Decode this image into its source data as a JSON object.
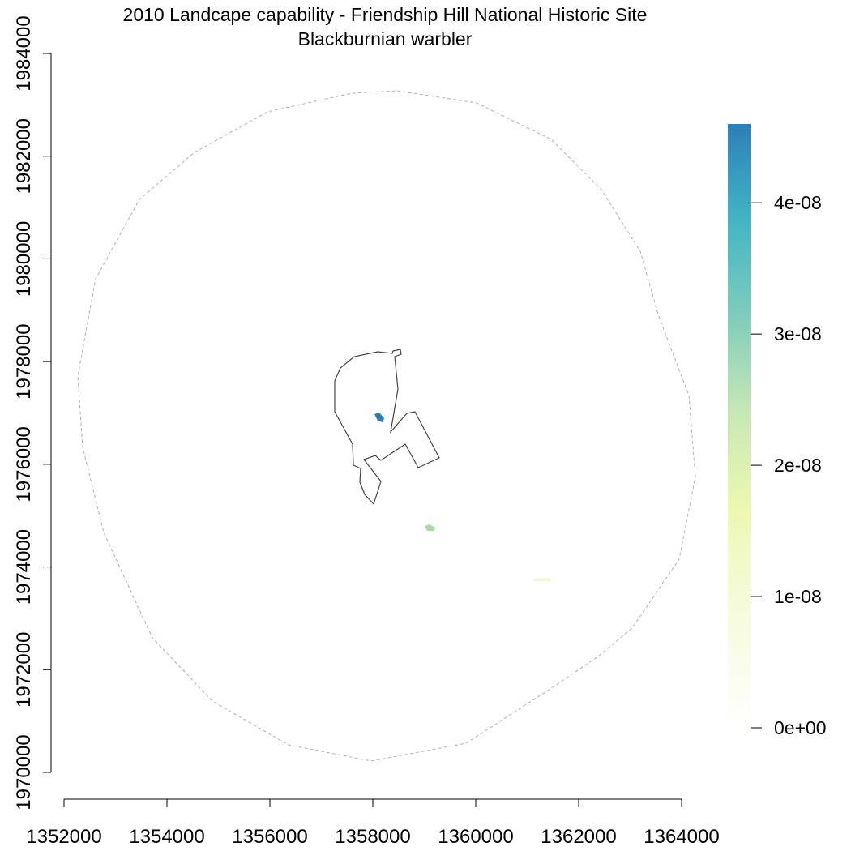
{
  "title": "2010 Landcape capability - Friendship Hill National Historic Site",
  "subtitle": "Blackburnian warbler",
  "x_axis": {
    "ticks": [
      "1352000",
      "1354000",
      "1356000",
      "1358000",
      "1360000",
      "1362000",
      "1364000"
    ],
    "tick_values": [
      1352000,
      1354000,
      1356000,
      1358000,
      1360000,
      1362000,
      1364000
    ],
    "range": [
      1352000,
      1364000
    ]
  },
  "y_axis": {
    "ticks": [
      "1970000",
      "1972000",
      "1974000",
      "1976000",
      "1978000",
      "1980000",
      "1982000",
      "1984000"
    ],
    "tick_values": [
      1970000,
      1972000,
      1974000,
      1976000,
      1978000,
      1980000,
      1982000,
      1984000
    ],
    "range": [
      1970000,
      1984000
    ]
  },
  "legend": {
    "placement": "right",
    "ticks": [
      "0e+00",
      "1e-08",
      "2e-08",
      "3e-08",
      "4e-08"
    ],
    "tick_values": [
      0,
      1e-08,
      2e-08,
      3e-08,
      4e-08
    ],
    "max_value": 4.6e-08,
    "colors": [
      "#ffffff",
      "#edf8b1",
      "#c7e9b4",
      "#7fcdbb",
      "#41b6c4",
      "#2c7fb8"
    ]
  },
  "colors": {
    "park_boundary": "#444444",
    "buffer_boundary": "#b0b0b0",
    "axis": "#000000"
  },
  "map": {
    "buffer_dashed": true,
    "capability_patches": [
      {
        "x": 1358100,
        "y": 1976900,
        "value": 4.2e-08
      },
      {
        "x": 1359100,
        "y": 1974750,
        "value": 1.8e-08
      },
      {
        "x": 1361300,
        "y": 1973760,
        "value": 8e-09
      }
    ]
  }
}
